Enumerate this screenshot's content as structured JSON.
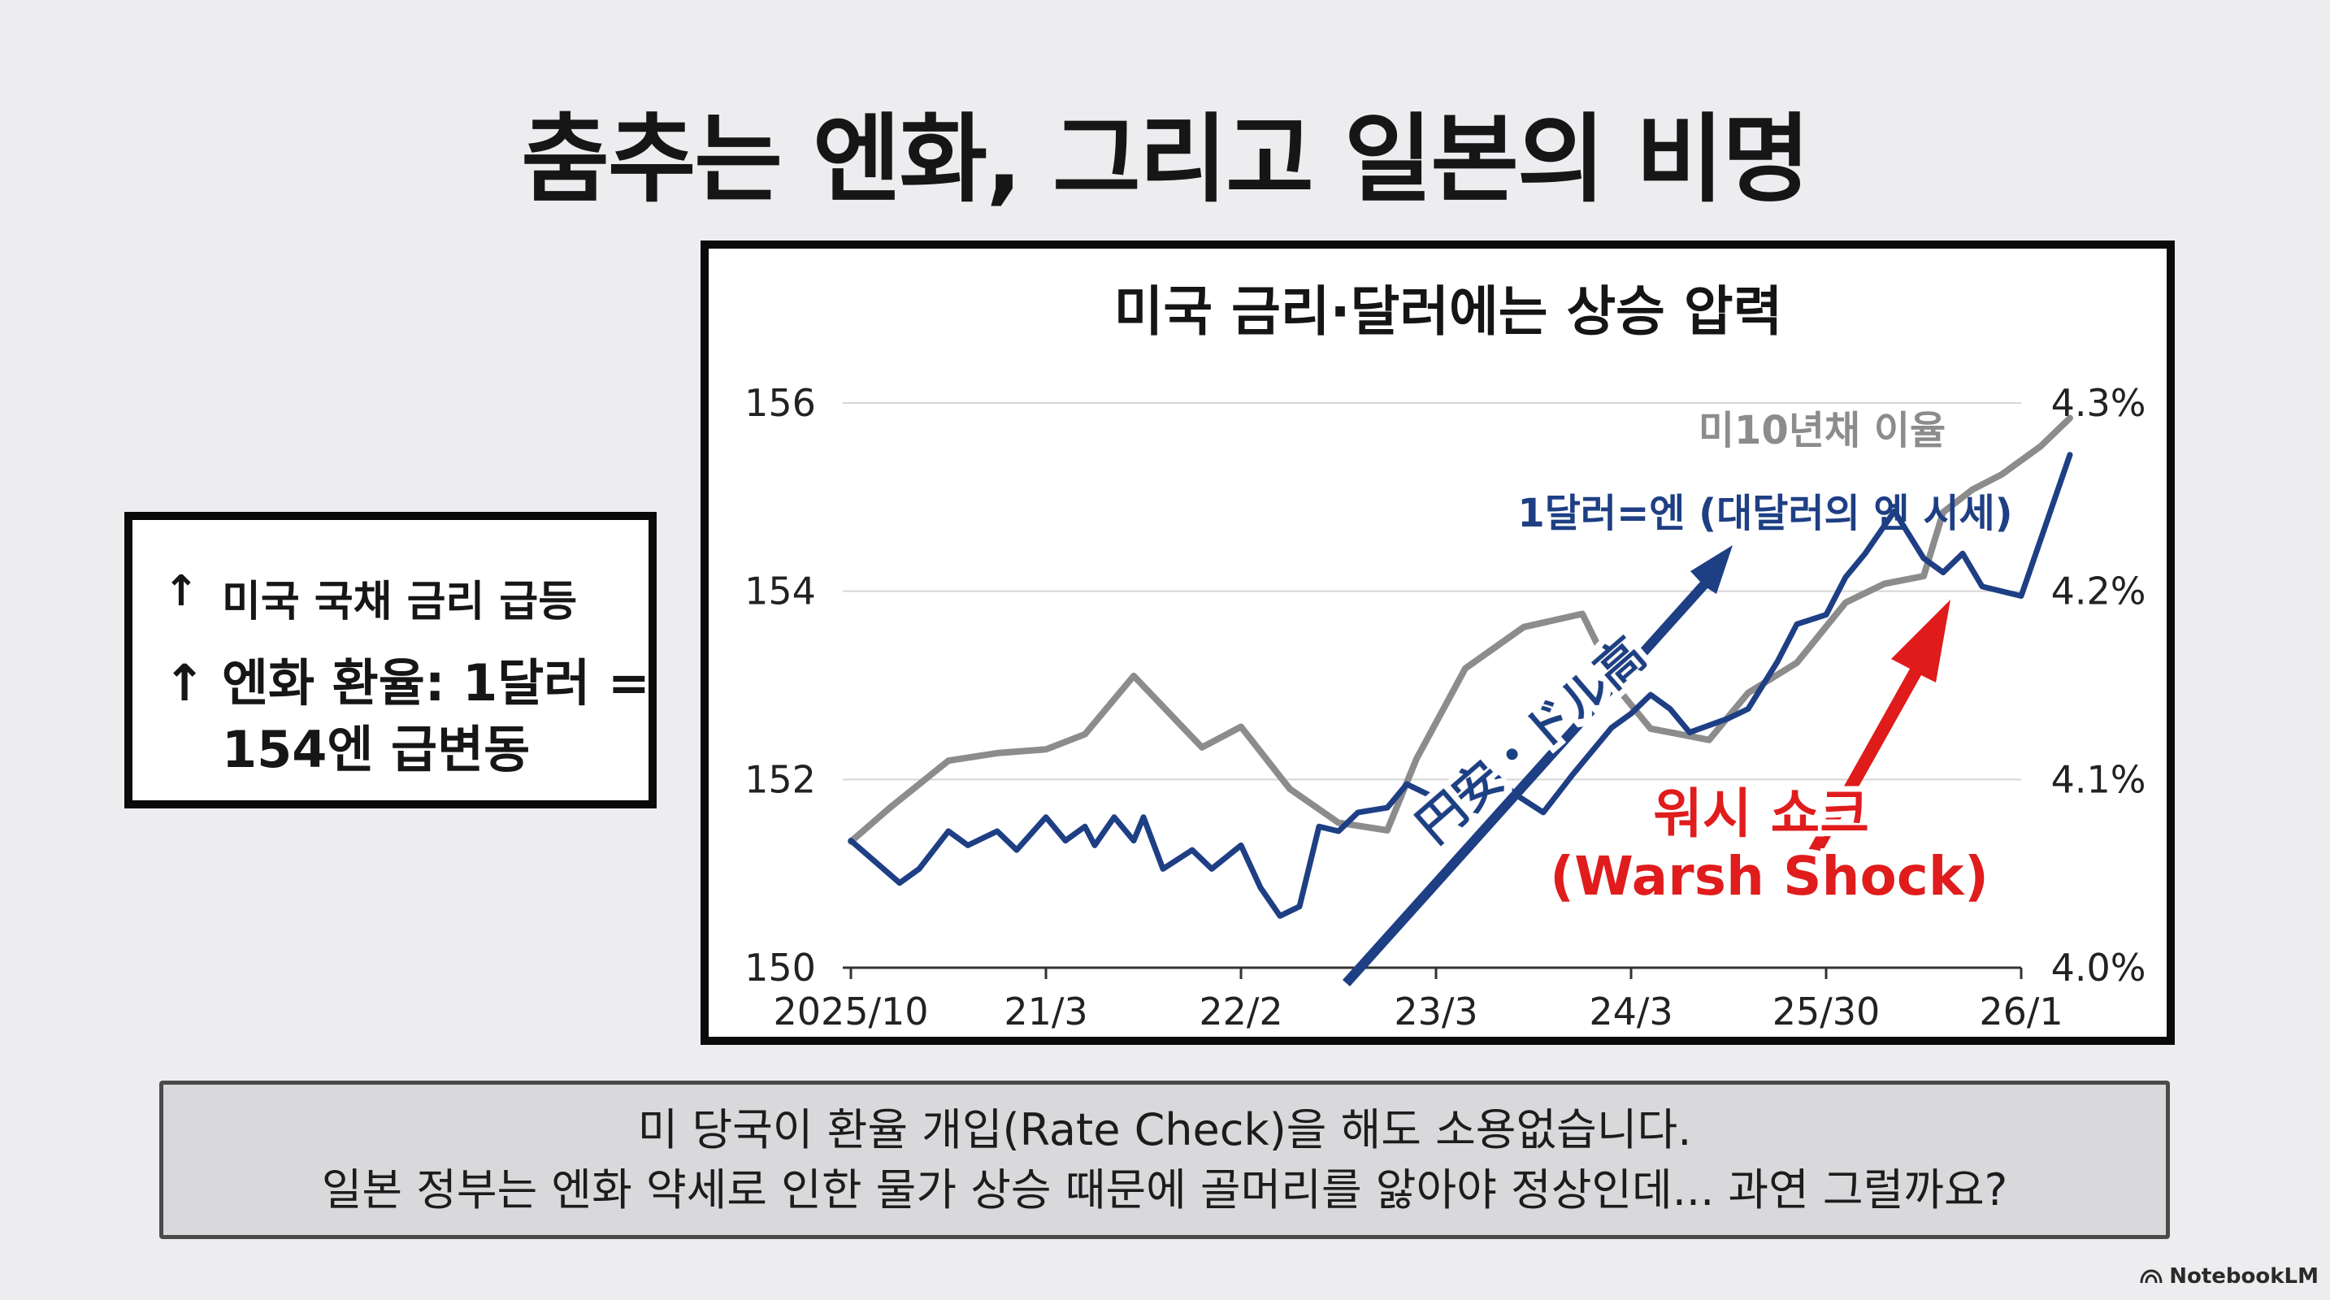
{
  "page": {
    "title": "춤추는 엔화, 그리고 일본의 비명",
    "info_box": {
      "arrow_glyph": "↑",
      "line1": "미국 국채 금리 급등",
      "line2": "엔화 환율: 1달러 =\n154엔 급변동"
    },
    "note": {
      "line1": "미 당국이 환율 개입(Rate Check)을 해도 소용없습니다.",
      "line2": "일본 정부는 엔화 약세로 인한 물가 상승 때문에 골머리를 앓아야 정상인데... 과연 그럴까요?"
    },
    "brand": {
      "name": "NotebookLM",
      "icon": "notebooklm-logo-icon"
    }
  },
  "chart_data": {
    "type": "line",
    "title": "미국 금리·달러에는 상승 압력",
    "x_tick_labels": [
      "2025/10",
      "21/3",
      "22/2",
      "23/3",
      "24/3",
      "25/30",
      "26/1"
    ],
    "y_left": {
      "ticks": [
        150,
        152,
        154,
        156
      ],
      "lim": [
        150,
        156
      ],
      "label": ""
    },
    "y_right": {
      "ticks": [
        "4.0%",
        "4.1%",
        "4.2%",
        "4.3%"
      ],
      "lim": [
        4.0,
        4.3
      ],
      "label": ""
    },
    "grid": true,
    "series": [
      {
        "name": "1달러=엔 (대달러의 엔 시세)",
        "axis": "left",
        "color": "#1e3f84",
        "x": [
          0,
          0.25,
          0.35,
          0.5,
          0.6,
          0.75,
          0.85,
          1.0,
          1.1,
          1.2,
          1.25,
          1.35,
          1.45,
          1.5,
          1.6,
          1.75,
          1.85,
          2.0,
          2.1,
          2.2,
          2.3,
          2.4,
          2.5,
          2.6,
          2.75,
          2.85,
          3.0,
          3.15,
          3.3,
          3.4,
          3.55,
          3.7,
          3.9,
          4.0,
          4.1,
          4.2,
          4.3,
          4.5,
          4.6,
          4.75,
          4.85,
          5.0,
          5.1,
          5.2,
          5.35,
          5.5,
          5.6,
          5.7,
          5.8,
          6.0,
          6.1,
          6.25
        ],
        "values": [
          151.35,
          150.9,
          151.05,
          151.45,
          151.3,
          151.45,
          151.25,
          151.6,
          151.35,
          151.5,
          151.3,
          151.6,
          151.35,
          151.6,
          151.05,
          151.25,
          151.05,
          151.3,
          150.85,
          150.55,
          150.65,
          151.5,
          151.45,
          151.65,
          151.7,
          151.95,
          151.8,
          151.95,
          152.05,
          151.85,
          151.65,
          152.05,
          152.55,
          152.7,
          152.9,
          152.75,
          152.5,
          152.65,
          152.75,
          153.25,
          153.65,
          153.75,
          154.15,
          154.4,
          154.85,
          154.35,
          154.2,
          154.4,
          154.05,
          153.95,
          154.55,
          155.45
        ]
      },
      {
        "name": "미10년채 이율",
        "axis": "right",
        "color": "#8c8c8c",
        "x": [
          0,
          0.2,
          0.5,
          0.75,
          1.0,
          1.2,
          1.45,
          1.8,
          2.0,
          2.25,
          2.5,
          2.75,
          2.9,
          3.15,
          3.45,
          3.75,
          3.95,
          4.1,
          4.25,
          4.4,
          4.6,
          4.85,
          5.1,
          5.3,
          5.5,
          5.6,
          5.75,
          5.9,
          6.1,
          6.25
        ],
        "values": [
          4.067,
          4.085,
          4.11,
          4.114,
          4.116,
          4.124,
          4.155,
          4.117,
          4.128,
          4.095,
          4.077,
          4.073,
          4.111,
          4.159,
          4.181,
          4.188,
          4.146,
          4.127,
          4.124,
          4.121,
          4.146,
          4.162,
          4.194,
          4.204,
          4.208,
          4.242,
          4.254,
          4.262,
          4.277,
          4.292
        ]
      }
    ],
    "annotations": [
      {
        "text": "円安・ドル高",
        "kind": "blue-arrow",
        "color": "#1e3f84"
      },
      {
        "text_line1": "워시 쇼크",
        "text_line2": "(Warsh Shock)",
        "kind": "red-arrow",
        "color": "#e01b1b"
      }
    ]
  }
}
